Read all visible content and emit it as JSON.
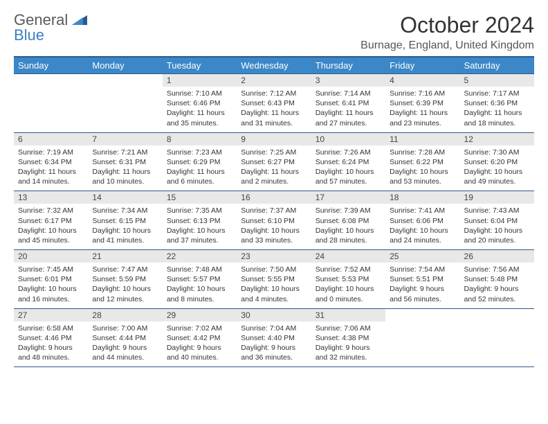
{
  "logo": {
    "word1": "General",
    "word2": "Blue"
  },
  "title": "October 2024",
  "location": "Burnage, England, United Kingdom",
  "colors": {
    "header_bg": "#3b87c8",
    "header_border": "#2a5a8a",
    "daynum_bg": "#e8e8e8",
    "logo_gray": "#5a5a5a",
    "logo_blue": "#3b7fc4"
  },
  "day_headers": [
    "Sunday",
    "Monday",
    "Tuesday",
    "Wednesday",
    "Thursday",
    "Friday",
    "Saturday"
  ],
  "weeks": [
    [
      null,
      null,
      {
        "n": "1",
        "sr": "Sunrise: 7:10 AM",
        "ss": "Sunset: 6:46 PM",
        "dl": "Daylight: 11 hours and 35 minutes."
      },
      {
        "n": "2",
        "sr": "Sunrise: 7:12 AM",
        "ss": "Sunset: 6:43 PM",
        "dl": "Daylight: 11 hours and 31 minutes."
      },
      {
        "n": "3",
        "sr": "Sunrise: 7:14 AM",
        "ss": "Sunset: 6:41 PM",
        "dl": "Daylight: 11 hours and 27 minutes."
      },
      {
        "n": "4",
        "sr": "Sunrise: 7:16 AM",
        "ss": "Sunset: 6:39 PM",
        "dl": "Daylight: 11 hours and 23 minutes."
      },
      {
        "n": "5",
        "sr": "Sunrise: 7:17 AM",
        "ss": "Sunset: 6:36 PM",
        "dl": "Daylight: 11 hours and 18 minutes."
      }
    ],
    [
      {
        "n": "6",
        "sr": "Sunrise: 7:19 AM",
        "ss": "Sunset: 6:34 PM",
        "dl": "Daylight: 11 hours and 14 minutes."
      },
      {
        "n": "7",
        "sr": "Sunrise: 7:21 AM",
        "ss": "Sunset: 6:31 PM",
        "dl": "Daylight: 11 hours and 10 minutes."
      },
      {
        "n": "8",
        "sr": "Sunrise: 7:23 AM",
        "ss": "Sunset: 6:29 PM",
        "dl": "Daylight: 11 hours and 6 minutes."
      },
      {
        "n": "9",
        "sr": "Sunrise: 7:25 AM",
        "ss": "Sunset: 6:27 PM",
        "dl": "Daylight: 11 hours and 2 minutes."
      },
      {
        "n": "10",
        "sr": "Sunrise: 7:26 AM",
        "ss": "Sunset: 6:24 PM",
        "dl": "Daylight: 10 hours and 57 minutes."
      },
      {
        "n": "11",
        "sr": "Sunrise: 7:28 AM",
        "ss": "Sunset: 6:22 PM",
        "dl": "Daylight: 10 hours and 53 minutes."
      },
      {
        "n": "12",
        "sr": "Sunrise: 7:30 AM",
        "ss": "Sunset: 6:20 PM",
        "dl": "Daylight: 10 hours and 49 minutes."
      }
    ],
    [
      {
        "n": "13",
        "sr": "Sunrise: 7:32 AM",
        "ss": "Sunset: 6:17 PM",
        "dl": "Daylight: 10 hours and 45 minutes."
      },
      {
        "n": "14",
        "sr": "Sunrise: 7:34 AM",
        "ss": "Sunset: 6:15 PM",
        "dl": "Daylight: 10 hours and 41 minutes."
      },
      {
        "n": "15",
        "sr": "Sunrise: 7:35 AM",
        "ss": "Sunset: 6:13 PM",
        "dl": "Daylight: 10 hours and 37 minutes."
      },
      {
        "n": "16",
        "sr": "Sunrise: 7:37 AM",
        "ss": "Sunset: 6:10 PM",
        "dl": "Daylight: 10 hours and 33 minutes."
      },
      {
        "n": "17",
        "sr": "Sunrise: 7:39 AM",
        "ss": "Sunset: 6:08 PM",
        "dl": "Daylight: 10 hours and 28 minutes."
      },
      {
        "n": "18",
        "sr": "Sunrise: 7:41 AM",
        "ss": "Sunset: 6:06 PM",
        "dl": "Daylight: 10 hours and 24 minutes."
      },
      {
        "n": "19",
        "sr": "Sunrise: 7:43 AM",
        "ss": "Sunset: 6:04 PM",
        "dl": "Daylight: 10 hours and 20 minutes."
      }
    ],
    [
      {
        "n": "20",
        "sr": "Sunrise: 7:45 AM",
        "ss": "Sunset: 6:01 PM",
        "dl": "Daylight: 10 hours and 16 minutes."
      },
      {
        "n": "21",
        "sr": "Sunrise: 7:47 AM",
        "ss": "Sunset: 5:59 PM",
        "dl": "Daylight: 10 hours and 12 minutes."
      },
      {
        "n": "22",
        "sr": "Sunrise: 7:48 AM",
        "ss": "Sunset: 5:57 PM",
        "dl": "Daylight: 10 hours and 8 minutes."
      },
      {
        "n": "23",
        "sr": "Sunrise: 7:50 AM",
        "ss": "Sunset: 5:55 PM",
        "dl": "Daylight: 10 hours and 4 minutes."
      },
      {
        "n": "24",
        "sr": "Sunrise: 7:52 AM",
        "ss": "Sunset: 5:53 PM",
        "dl": "Daylight: 10 hours and 0 minutes."
      },
      {
        "n": "25",
        "sr": "Sunrise: 7:54 AM",
        "ss": "Sunset: 5:51 PM",
        "dl": "Daylight: 9 hours and 56 minutes."
      },
      {
        "n": "26",
        "sr": "Sunrise: 7:56 AM",
        "ss": "Sunset: 5:48 PM",
        "dl": "Daylight: 9 hours and 52 minutes."
      }
    ],
    [
      {
        "n": "27",
        "sr": "Sunrise: 6:58 AM",
        "ss": "Sunset: 4:46 PM",
        "dl": "Daylight: 9 hours and 48 minutes."
      },
      {
        "n": "28",
        "sr": "Sunrise: 7:00 AM",
        "ss": "Sunset: 4:44 PM",
        "dl": "Daylight: 9 hours and 44 minutes."
      },
      {
        "n": "29",
        "sr": "Sunrise: 7:02 AM",
        "ss": "Sunset: 4:42 PM",
        "dl": "Daylight: 9 hours and 40 minutes."
      },
      {
        "n": "30",
        "sr": "Sunrise: 7:04 AM",
        "ss": "Sunset: 4:40 PM",
        "dl": "Daylight: 9 hours and 36 minutes."
      },
      {
        "n": "31",
        "sr": "Sunrise: 7:06 AM",
        "ss": "Sunset: 4:38 PM",
        "dl": "Daylight: 9 hours and 32 minutes."
      },
      null,
      null
    ]
  ]
}
